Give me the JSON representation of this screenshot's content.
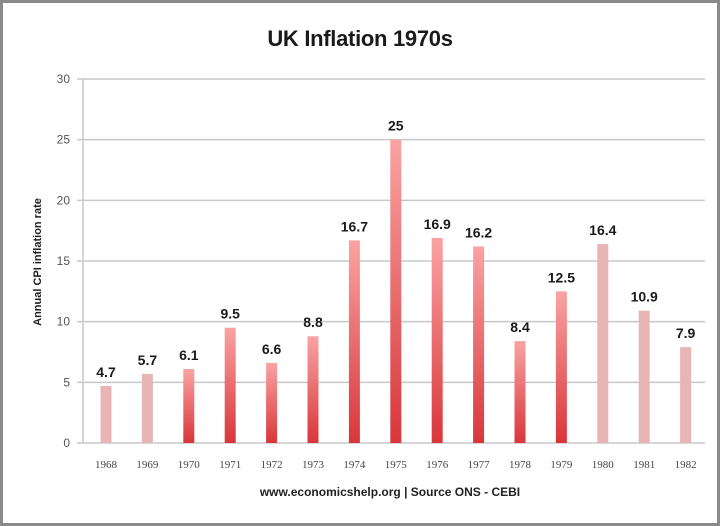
{
  "chart_data": {
    "type": "bar",
    "title": "UK Inflation 1970s",
    "xlabel": "www.economicshelp.org | Source ONS - CEBI",
    "ylabel": "Annual CPI inflation rate",
    "ylim": [
      0,
      30
    ],
    "yticks": [
      0,
      5,
      10,
      15,
      20,
      25,
      30
    ],
    "grid": true,
    "legend": "none",
    "categories": [
      "1968",
      "1969",
      "1970",
      "1971",
      "1972",
      "1973",
      "1974",
      "1975",
      "1976",
      "1977",
      "1978",
      "1979",
      "1980",
      "1981",
      "1982"
    ],
    "values": [
      4.7,
      5.7,
      6.1,
      9.5,
      6.6,
      8.8,
      16.7,
      25,
      16.9,
      16.2,
      8.4,
      12.5,
      16.4,
      10.9,
      7.9
    ],
    "data_labels": [
      "4.7",
      "5.7",
      "6.1",
      "9.5",
      "6.6",
      "8.8",
      "16.7",
      "25",
      "16.9",
      "16.2",
      "8.4",
      "12.5",
      "16.4",
      "10.9",
      "7.9"
    ],
    "highlighted": [
      false,
      false,
      true,
      true,
      true,
      true,
      true,
      true,
      true,
      true,
      true,
      true,
      false,
      false,
      false
    ],
    "colors": {
      "highlight_top": "#faa3a3",
      "highlight_bottom": "#d8363a",
      "muted": "#e8b5b7",
      "grid": "#c8c8c8"
    }
  }
}
